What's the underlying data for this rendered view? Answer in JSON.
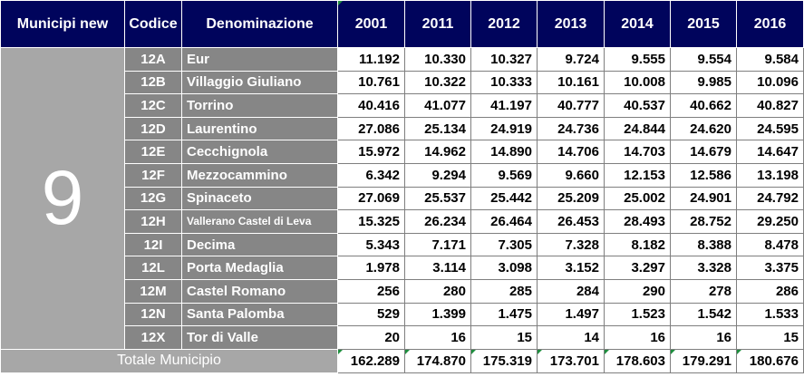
{
  "header": {
    "municipio_label": "Municipi new",
    "codice_label": "Codice",
    "denominazione_label": "Denominazione",
    "years": [
      "2001",
      "2011",
      "2012",
      "2013",
      "2014",
      "2015",
      "2016"
    ]
  },
  "municipio": "9",
  "rows": [
    {
      "code": "12A",
      "name": "Eur",
      "values": [
        "11.192",
        "10.330",
        "10.327",
        "9.724",
        "9.555",
        "9.554",
        "9.584"
      ]
    },
    {
      "code": "12B",
      "name": "Villaggio Giuliano",
      "values": [
        "10.761",
        "10.322",
        "10.333",
        "10.161",
        "10.008",
        "9.985",
        "10.096"
      ]
    },
    {
      "code": "12C",
      "name": "Torrino",
      "values": [
        "40.416",
        "41.077",
        "41.197",
        "40.777",
        "40.537",
        "40.662",
        "40.827"
      ]
    },
    {
      "code": "12D",
      "name": "Laurentino",
      "values": [
        "27.086",
        "25.134",
        "24.919",
        "24.736",
        "24.844",
        "24.620",
        "24.595"
      ]
    },
    {
      "code": "12E",
      "name": "Cecchignola",
      "values": [
        "15.972",
        "14.962",
        "14.890",
        "14.706",
        "14.703",
        "14.679",
        "14.647"
      ]
    },
    {
      "code": "12F",
      "name": "Mezzocammino",
      "values": [
        "6.342",
        "9.294",
        "9.569",
        "9.660",
        "12.153",
        "12.586",
        "13.198"
      ]
    },
    {
      "code": "12G",
      "name": "Spinaceto",
      "values": [
        "27.069",
        "25.537",
        "25.442",
        "25.209",
        "25.002",
        "24.901",
        "24.792"
      ]
    },
    {
      "code": "12H",
      "name": "Vallerano Castel di Leva",
      "values": [
        "15.325",
        "26.234",
        "26.464",
        "26.453",
        "28.493",
        "28.752",
        "29.250"
      ]
    },
    {
      "code": "12I",
      "name": "Decima",
      "values": [
        "5.343",
        "7.171",
        "7.305",
        "7.328",
        "8.182",
        "8.388",
        "8.478"
      ]
    },
    {
      "code": "12L",
      "name": "Porta Medaglia",
      "values": [
        "1.978",
        "3.114",
        "3.098",
        "3.152",
        "3.297",
        "3.328",
        "3.375"
      ]
    },
    {
      "code": "12M",
      "name": "Castel Romano",
      "values": [
        "256",
        "280",
        "285",
        "284",
        "290",
        "278",
        "286"
      ]
    },
    {
      "code": "12N",
      "name": "Santa Palomba",
      "values": [
        "529",
        "1.399",
        "1.475",
        "1.497",
        "1.523",
        "1.542",
        "1.533"
      ]
    },
    {
      "code": "12X",
      "name": "Tor di Valle",
      "values": [
        "20",
        "16",
        "15",
        "14",
        "16",
        "16",
        "15"
      ]
    }
  ],
  "total": {
    "label": "Totale Municipio",
    "values": [
      "162.289",
      "174.870",
      "175.319",
      "173.701",
      "178.603",
      "179.291",
      "180.676"
    ]
  },
  "colors": {
    "header_bg": "#00045c",
    "row_label_bg": "#868686",
    "municipio_bg": "#a7a7a7",
    "marker_green": "#1e8e3e"
  }
}
